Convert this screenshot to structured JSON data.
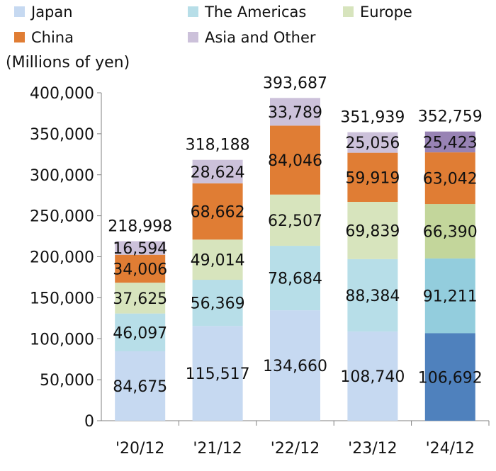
{
  "chart_data": {
    "type": "bar",
    "stacked": true,
    "unit_label": "(Millions of yen)",
    "categories": [
      "'20/12",
      "'21/12",
      "'22/12",
      "'23/12",
      "'24/12"
    ],
    "series": [
      {
        "name": "Japan",
        "color": "#c6d9f1",
        "values": [
          84675,
          115517,
          134660,
          108740,
          106692
        ]
      },
      {
        "name": "The Americas",
        "color": "#b7dee8",
        "values": [
          46097,
          56369,
          78684,
          88384,
          91211
        ]
      },
      {
        "name": "Europe",
        "color": "#d7e4bd",
        "values": [
          37625,
          49014,
          62507,
          69839,
          66390
        ]
      },
      {
        "name": "China",
        "color": "#e07d34",
        "values": [
          34006,
          68662,
          84046,
          59919,
          63042
        ]
      },
      {
        "name": "Asia and Other",
        "color": "#ccc1da",
        "values": [
          16594,
          28624,
          33789,
          25056,
          25423
        ]
      }
    ],
    "highlight_colors": [
      "#4f81bd",
      "#93cddd",
      "#c3d69b",
      "#e07d34",
      "#9883b4"
    ],
    "totals": [
      218998,
      318188,
      393687,
      351939,
      352759
    ],
    "value_labels": [
      [
        "84,675",
        "115,517",
        "134,660",
        "108,740",
        "106,692"
      ],
      [
        "46,097",
        "56,369",
        "78,684",
        "88,384",
        "91,211"
      ],
      [
        "37,625",
        "49,014",
        "62,507",
        "69,839",
        "66,390"
      ],
      [
        "34,006",
        "68,662",
        "84,046",
        "59,919",
        "63,042"
      ],
      [
        "16,594",
        "28,624",
        "33,789",
        "25,056",
        "25,423"
      ]
    ],
    "total_labels": [
      "218,998",
      "318,188",
      "393,687",
      "351,939",
      "352,759"
    ],
    "yticks": [
      "0",
      "50,000",
      "100,000",
      "150,000",
      "200,000",
      "250,000",
      "300,000",
      "350,000",
      "400,000"
    ],
    "ylim": [
      0,
      400000
    ],
    "grid": false,
    "legend_position": "top"
  }
}
